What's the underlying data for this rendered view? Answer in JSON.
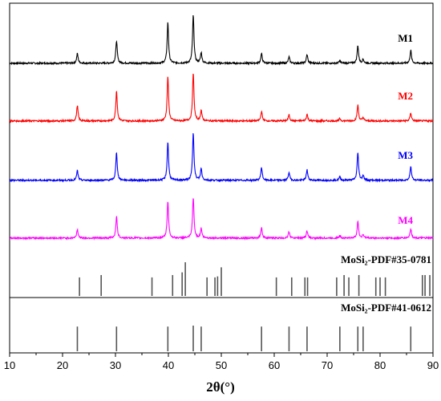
{
  "chart_data": {
    "type": "line",
    "xlabel": "2θ(°)",
    "xlim": [
      10,
      90
    ],
    "x_ticks": [
      "10",
      "20",
      "30",
      "40",
      "50",
      "60",
      "70",
      "80",
      "90"
    ],
    "grid": false,
    "legend_placement": "right of each trace",
    "series": [
      {
        "name": "M1",
        "color": "#000000",
        "peaks": [
          {
            "x": 22.8,
            "h": 0.2
          },
          {
            "x": 30.2,
            "h": 0.47
          },
          {
            "x": 39.9,
            "h": 0.85
          },
          {
            "x": 44.7,
            "h": 1.0
          },
          {
            "x": 46.2,
            "h": 0.22
          },
          {
            "x": 57.6,
            "h": 0.2
          },
          {
            "x": 62.8,
            "h": 0.13
          },
          {
            "x": 66.2,
            "h": 0.18
          },
          {
            "x": 72.4,
            "h": 0.05
          },
          {
            "x": 75.8,
            "h": 0.37
          },
          {
            "x": 76.8,
            "h": 0.08
          },
          {
            "x": 85.8,
            "h": 0.27
          }
        ]
      },
      {
        "name": "M2",
        "color": "#ff0000",
        "peaks": [
          {
            "x": 22.8,
            "h": 0.32
          },
          {
            "x": 30.2,
            "h": 0.63
          },
          {
            "x": 39.9,
            "h": 0.93
          },
          {
            "x": 44.7,
            "h": 1.0
          },
          {
            "x": 46.2,
            "h": 0.22
          },
          {
            "x": 57.6,
            "h": 0.2
          },
          {
            "x": 62.8,
            "h": 0.13
          },
          {
            "x": 66.2,
            "h": 0.14
          },
          {
            "x": 72.4,
            "h": 0.05
          },
          {
            "x": 75.8,
            "h": 0.33
          },
          {
            "x": 76.8,
            "h": 0.07
          },
          {
            "x": 85.8,
            "h": 0.17
          }
        ]
      },
      {
        "name": "M3",
        "color": "#0000ff",
        "peaks": [
          {
            "x": 22.8,
            "h": 0.2
          },
          {
            "x": 30.2,
            "h": 0.58
          },
          {
            "x": 39.9,
            "h": 0.8
          },
          {
            "x": 44.7,
            "h": 1.0
          },
          {
            "x": 46.2,
            "h": 0.24
          },
          {
            "x": 57.6,
            "h": 0.27
          },
          {
            "x": 62.8,
            "h": 0.17
          },
          {
            "x": 66.2,
            "h": 0.22
          },
          {
            "x": 72.4,
            "h": 0.07
          },
          {
            "x": 75.8,
            "h": 0.58
          },
          {
            "x": 76.8,
            "h": 0.1
          },
          {
            "x": 85.8,
            "h": 0.3
          }
        ]
      },
      {
        "name": "M4",
        "color": "#ff00ff",
        "peaks": [
          {
            "x": 22.8,
            "h": 0.18
          },
          {
            "x": 30.2,
            "h": 0.45
          },
          {
            "x": 39.9,
            "h": 0.77
          },
          {
            "x": 44.7,
            "h": 0.85
          },
          {
            "x": 46.2,
            "h": 0.2
          },
          {
            "x": 57.6,
            "h": 0.22
          },
          {
            "x": 62.8,
            "h": 0.13
          },
          {
            "x": 66.2,
            "h": 0.15
          },
          {
            "x": 72.4,
            "h": 0.05
          },
          {
            "x": 75.8,
            "h": 0.35
          },
          {
            "x": 76.8,
            "h": 0.07
          },
          {
            "x": 85.8,
            "h": 0.2
          }
        ]
      }
    ],
    "references": [
      {
        "name": "MoSi₂-PDF#35-0781",
        "color": "#555555",
        "lines": [
          {
            "x": 23.2,
            "h": 0.55
          },
          {
            "x": 27.3,
            "h": 0.62
          },
          {
            "x": 36.9,
            "h": 0.55
          },
          {
            "x": 40.8,
            "h": 0.62
          },
          {
            "x": 42.6,
            "h": 0.7
          },
          {
            "x": 43.2,
            "h": 1.0
          },
          {
            "x": 47.3,
            "h": 0.55
          },
          {
            "x": 48.8,
            "h": 0.55
          },
          {
            "x": 49.3,
            "h": 0.58
          },
          {
            "x": 50.0,
            "h": 0.85
          },
          {
            "x": 60.4,
            "h": 0.55
          },
          {
            "x": 63.3,
            "h": 0.55
          },
          {
            "x": 65.8,
            "h": 0.55
          },
          {
            "x": 66.3,
            "h": 0.55
          },
          {
            "x": 71.8,
            "h": 0.55
          },
          {
            "x": 73.2,
            "h": 0.62
          },
          {
            "x": 74.1,
            "h": 0.55
          },
          {
            "x": 76.0,
            "h": 0.62
          },
          {
            "x": 79.2,
            "h": 0.55
          },
          {
            "x": 80.0,
            "h": 0.55
          },
          {
            "x": 81.0,
            "h": 0.55
          },
          {
            "x": 88.0,
            "h": 0.62
          },
          {
            "x": 88.5,
            "h": 0.62
          },
          {
            "x": 89.4,
            "h": 0.62
          }
        ]
      },
      {
        "name": "MoSi₂-PDF#41-0612",
        "color": "#555555",
        "lines": [
          {
            "x": 22.8,
            "h": 0.77
          },
          {
            "x": 30.2,
            "h": 0.77
          },
          {
            "x": 39.9,
            "h": 0.77
          },
          {
            "x": 44.7,
            "h": 0.8
          },
          {
            "x": 46.2,
            "h": 0.77
          },
          {
            "x": 57.6,
            "h": 0.77
          },
          {
            "x": 62.8,
            "h": 0.77
          },
          {
            "x": 66.2,
            "h": 0.77
          },
          {
            "x": 72.4,
            "h": 0.77
          },
          {
            "x": 75.8,
            "h": 0.77
          },
          {
            "x": 76.8,
            "h": 0.77
          },
          {
            "x": 85.8,
            "h": 0.77
          }
        ]
      }
    ]
  }
}
